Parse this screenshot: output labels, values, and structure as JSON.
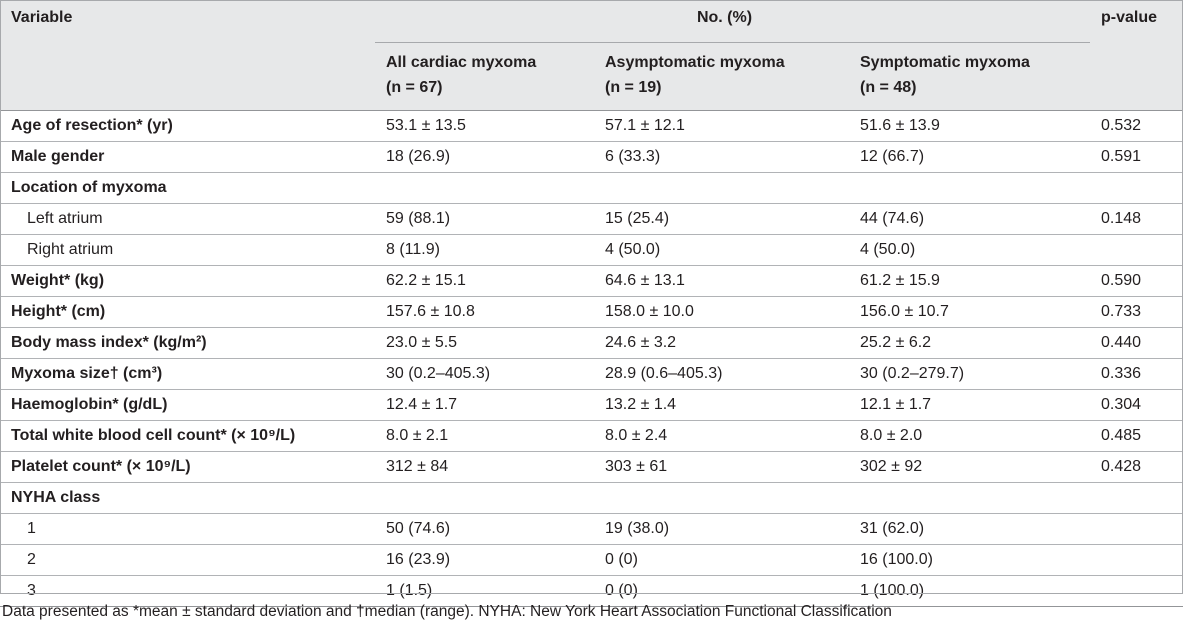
{
  "header": {
    "variable": "Variable",
    "group": "No. (%)",
    "pvalue": "p-value",
    "columns": [
      {
        "name": "All cardiac myxoma",
        "n": "(n = 67)"
      },
      {
        "name": "Asymptomatic myxoma",
        "n": "(n = 19)"
      },
      {
        "name": "Symptomatic myxoma",
        "n": "(n = 48)"
      }
    ]
  },
  "rows": [
    {
      "label": "Age of resection* (yr)",
      "bold": true,
      "all": "53.1 ± 13.5",
      "asym": "57.1 ± 12.1",
      "sym": "51.6 ± 13.9",
      "p": "0.532"
    },
    {
      "label": "Male gender",
      "bold": true,
      "all": "18 (26.9)",
      "asym": "6 (33.3)",
      "sym": "12 (66.7)",
      "p": "0.591"
    },
    {
      "label": "Location of myxoma",
      "bold": true,
      "all": "",
      "asym": "",
      "sym": "",
      "p": ""
    },
    {
      "label": "Left atrium",
      "bold": false,
      "all": "59 (88.1)",
      "asym": "15 (25.4)",
      "sym": "44 (74.6)",
      "p": "0.148"
    },
    {
      "label": "Right atrium",
      "bold": false,
      "all": "8 (11.9)",
      "asym": "4 (50.0)",
      "sym": "4 (50.0)",
      "p": ""
    },
    {
      "label": "Weight* (kg)",
      "bold": true,
      "all": "62.2 ± 15.1",
      "asym": "64.6 ± 13.1",
      "sym": "61.2 ± 15.9",
      "p": "0.590"
    },
    {
      "label": "Height* (cm)",
      "bold": true,
      "all": "157.6 ± 10.8",
      "asym": "158.0 ± 10.0",
      "sym": "156.0 ± 10.7",
      "p": "0.733"
    },
    {
      "label": "Body mass index* (kg/m²)",
      "bold": true,
      "all": "23.0 ± 5.5",
      "asym": "24.6 ± 3.2",
      "sym": "25.2 ± 6.2",
      "p": "0.440"
    },
    {
      "label": "Myxoma size† (cm³)",
      "bold": true,
      "all": "30 (0.2–405.3)",
      "asym": "28.9 (0.6–405.3)",
      "sym": "30 (0.2–279.7)",
      "p": "0.336"
    },
    {
      "label": "Haemoglobin* (g/dL)",
      "bold": true,
      "all": "12.4 ± 1.7",
      "asym": "13.2 ± 1.4",
      "sym": "12.1 ± 1.7",
      "p": "0.304"
    },
    {
      "label": "Total white blood cell count* (× 10⁹/L)",
      "bold": true,
      "all": "8.0 ± 2.1",
      "asym": "8.0 ± 2.4",
      "sym": "8.0 ± 2.0",
      "p": "0.485"
    },
    {
      "label": "Platelet count* (× 10⁹/L)",
      "bold": true,
      "all": "312 ± 84",
      "asym": "303 ± 61",
      "sym": "302 ± 92",
      "p": "0.428"
    },
    {
      "label": "NYHA class",
      "bold": true,
      "all": "",
      "asym": "",
      "sym": "",
      "p": ""
    },
    {
      "label": "1",
      "bold": false,
      "all": "50 (74.6)",
      "asym": "19 (38.0)",
      "sym": "31 (62.0)",
      "p": ""
    },
    {
      "label": "2",
      "bold": false,
      "all": "16 (23.9)",
      "asym": "0 (0)",
      "sym": "16 (100.0)",
      "p": ""
    },
    {
      "label": "3",
      "bold": false,
      "all": "1 (1.5)",
      "asym": "0 (0)",
      "sym": "1 (100.0)",
      "p": ""
    }
  ],
  "footnote": "Data presented as *mean  ±  standard deviation and †median (range). NYHA: New York Heart Association Functional Classification",
  "colors": {
    "header_bg": "#e7e8e9",
    "rule": "#b1b3b6",
    "text": "#231f20"
  }
}
